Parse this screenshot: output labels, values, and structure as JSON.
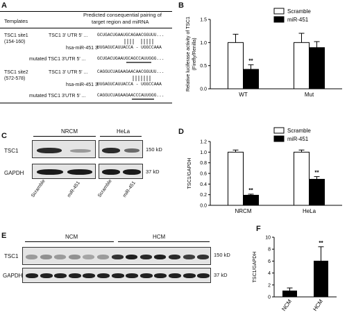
{
  "panelA": {
    "letter": "A",
    "header_left": "Templates",
    "header_right_1": "Predicted consequential pairing of",
    "header_right_2": "target region and miRNA",
    "site1": {
      "name": "TSC1 site1",
      "range": "(154-160)",
      "rows": [
        {
          "label": "TSC1 3' UTR 5' ...",
          "seq": "GCUGACUGAAUGCAGAACGGUUU..."
        },
        {
          "label": "hsa-miR-451 3'",
          "seq": "UUGAGUCAUUACCA - UGGCCAAA"
        },
        {
          "label": "mutated TSC1 3'UTR 5' ...",
          "seq": "GCUGACUGAAUGCAGCCAUUGGG..."
        }
      ]
    },
    "site2": {
      "name": "TSC1 site2",
      "range": "(572-578)",
      "rows": [
        {
          "label": "TSC1 3' UTR 5' ...",
          "seq": "CAGGUCUAGAAGAACAACGGUUU..."
        },
        {
          "label": "hsa-miR-451 3'",
          "seq": "UUGAGUCAUUACCA - UGGCCAAA"
        },
        {
          "label": "mutated TSC1 3'UTR 5' ...",
          "seq": "CAGGUCUAGAAGAACCCAUUGGG..."
        }
      ]
    }
  },
  "panelB": {
    "letter": "B",
    "chart_data": {
      "type": "bar",
      "title": "",
      "ylabel": "Relative luciferase activity of TSC1 (Firefly/Renilla)",
      "ylabel_1": "Relative luciferase activity of TSC1",
      "ylabel_2": "(Firefly/Renilla)",
      "ylim": [
        0,
        1.5
      ],
      "yticks": [
        "0.0",
        "0.5",
        "1.0",
        "1.5"
      ],
      "categories": [
        "WT",
        "Mut"
      ],
      "series": [
        {
          "name": "Scramble",
          "values": [
            1.0,
            1.0
          ],
          "errors": [
            0.18,
            0.2
          ]
        },
        {
          "name": "miR-451",
          "values": [
            0.42,
            0.89
          ],
          "errors": [
            0.1,
            0.13
          ]
        }
      ],
      "annotations": [
        "**"
      ],
      "legend": "top-right",
      "series_colors": [
        "#ffffff",
        "#000000"
      ]
    }
  },
  "panelC": {
    "letter": "C",
    "groups": [
      "NRCM",
      "HeLa"
    ],
    "rows": [
      "TSC1",
      "GAPDH"
    ],
    "sizes": [
      "150 kD",
      "37 kD"
    ],
    "lanes": [
      "Scramble",
      "miR-451",
      "Scramble",
      "miR-451"
    ]
  },
  "panelD": {
    "letter": "D",
    "chart_data": {
      "type": "bar",
      "title": "",
      "ylabel": "TSC1/GAPDH",
      "ylim": [
        0,
        1.2
      ],
      "yticks": [
        "0.0",
        "0.2",
        "0.4",
        "0.6",
        "0.8",
        "1.0",
        "1.2"
      ],
      "categories": [
        "NRCM",
        "HeLa"
      ],
      "series": [
        {
          "name": "Scramble",
          "values": [
            1.0,
            1.0
          ],
          "errors": [
            0.04,
            0.04
          ]
        },
        {
          "name": "miR-451",
          "values": [
            0.19,
            0.49
          ],
          "errors": [
            0.02,
            0.05
          ]
        }
      ],
      "annotations": [
        "**",
        "**"
      ],
      "legend": "top-right",
      "series_colors": [
        "#ffffff",
        "#000000"
      ]
    }
  },
  "panelE": {
    "letter": "E",
    "groups": [
      "NCM",
      "HCM"
    ],
    "rows": [
      "TSC1",
      "GAPDH"
    ],
    "sizes": [
      "150 kD",
      "37 kD"
    ]
  },
  "panelF": {
    "letter": "F",
    "chart_data": {
      "type": "bar",
      "title": "",
      "ylabel": "TSC1/GAPDH",
      "ylim": [
        0,
        10
      ],
      "yticks": [
        "0",
        "2",
        "4",
        "6",
        "8",
        "10"
      ],
      "categories": [
        "NCM",
        "HCM"
      ],
      "values": [
        1.0,
        6.0
      ],
      "errors": [
        0.5,
        2.4
      ],
      "annotations": [
        "**"
      ],
      "series_colors": [
        "#000000"
      ]
    }
  }
}
